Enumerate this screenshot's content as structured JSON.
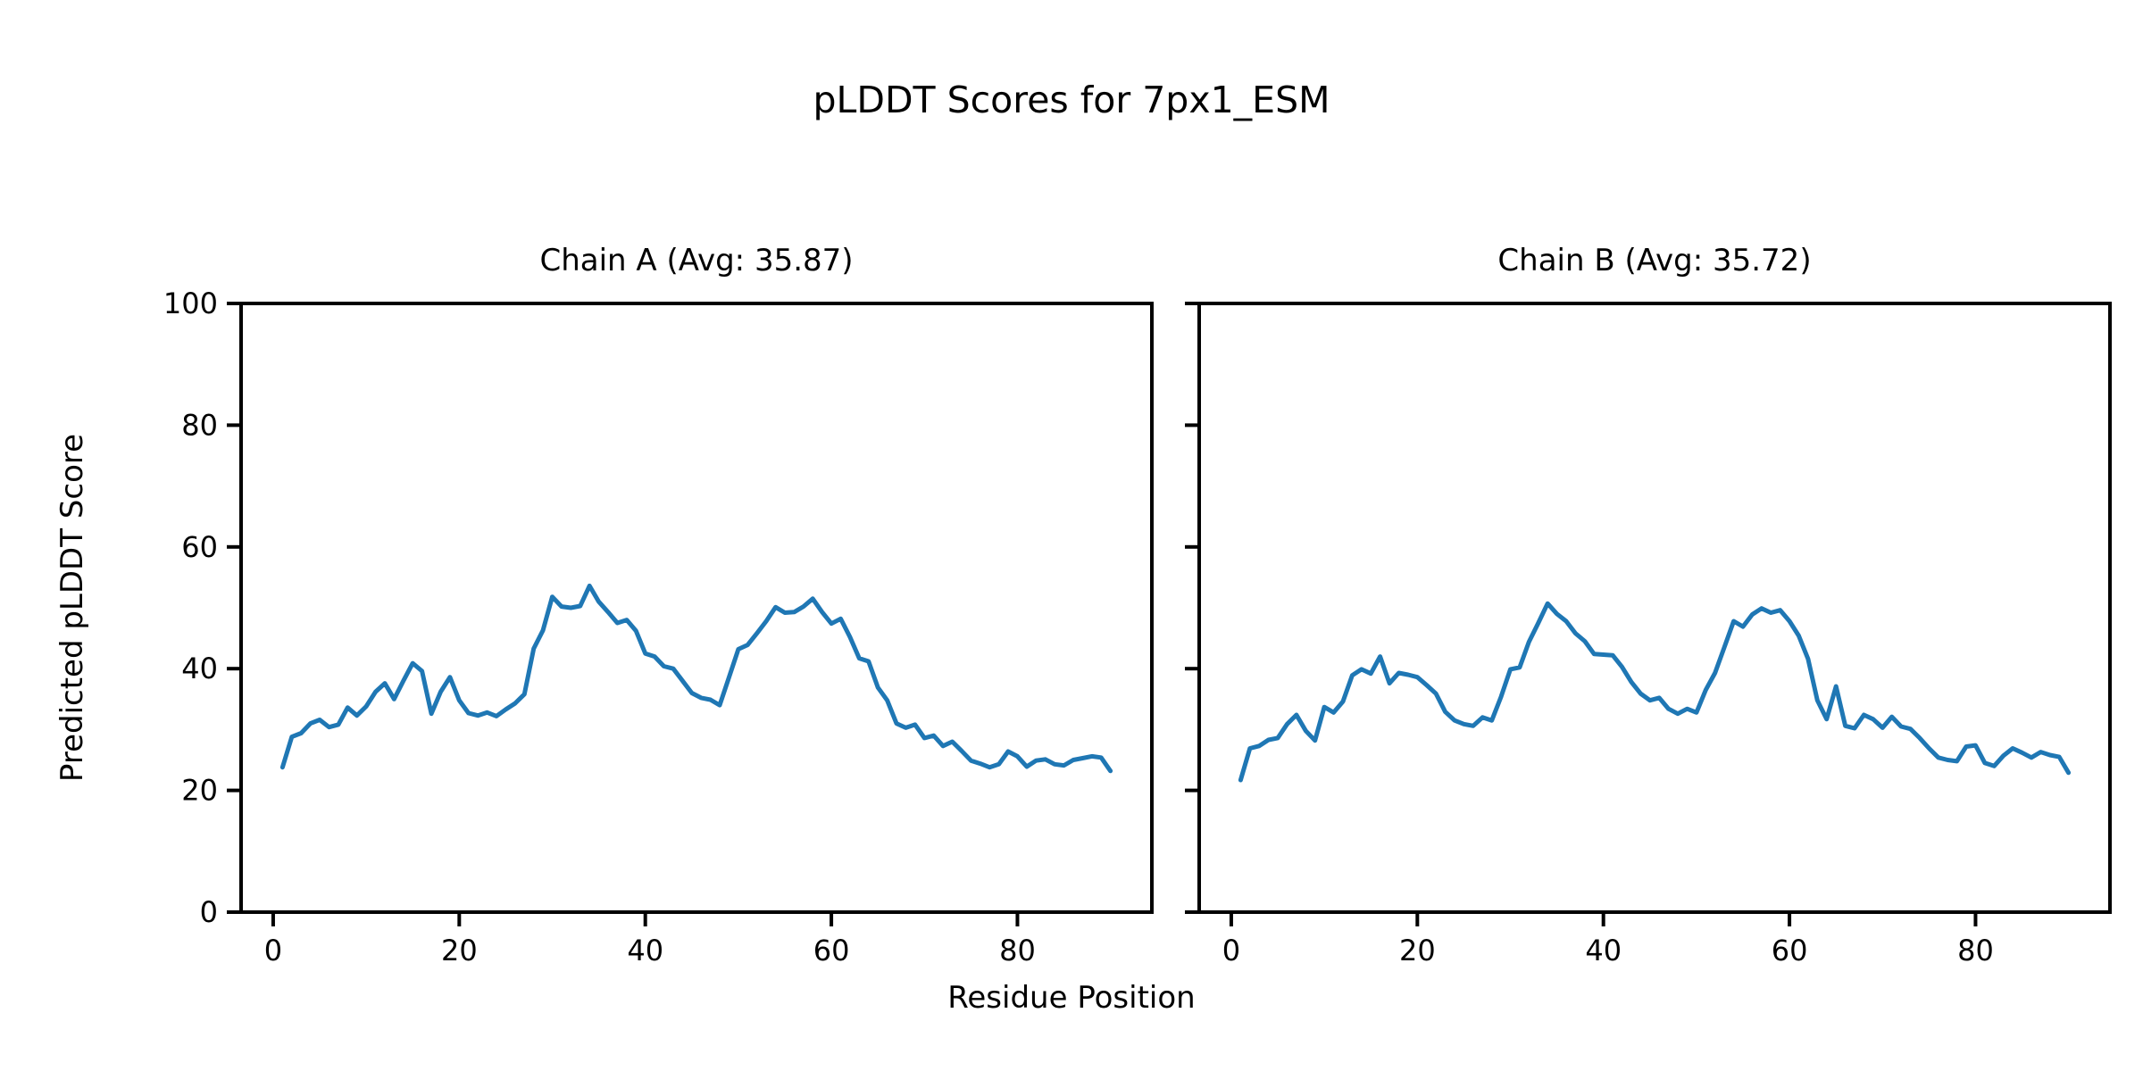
{
  "figure": {
    "title": "pLDDT Scores for 7px1_ESM",
    "xlabel": "Residue Position",
    "ylabel": "Predicted pLDDT Score",
    "background_color": "#ffffff",
    "text_color": "#000000",
    "line_color": "#1f77b4"
  },
  "chart_data": [
    {
      "type": "line",
      "title": "Chain A (Avg: 35.87)",
      "chain": "A",
      "avg": 35.87,
      "xlabel": "Residue Position",
      "ylabel": "Predicted pLDDT Score",
      "xlim": [
        -3.45,
        94.45
      ],
      "ylim": [
        0,
        100
      ],
      "x_ticks": [
        0,
        20,
        40,
        60,
        80
      ],
      "y_ticks": [
        0,
        20,
        40,
        60,
        80,
        100
      ],
      "y_tick_labels_visible": true,
      "grid": false,
      "legend_position": "none",
      "line_color": "#1f77b4",
      "series": [
        {
          "name": "Chain A",
          "x": [
            1,
            2,
            3,
            4,
            5,
            6,
            7,
            8,
            9,
            10,
            11,
            12,
            13,
            14,
            15,
            16,
            17,
            18,
            19,
            20,
            21,
            22,
            23,
            24,
            25,
            26,
            27,
            28,
            29,
            30,
            31,
            32,
            33,
            34,
            35,
            36,
            37,
            38,
            39,
            40,
            41,
            42,
            43,
            44,
            45,
            46,
            47,
            48,
            49,
            50,
            51,
            52,
            53,
            54,
            55,
            56,
            57,
            58,
            59,
            60,
            61,
            62,
            63,
            64,
            65,
            66,
            67,
            68,
            69,
            70,
            71,
            72,
            73,
            74,
            75,
            76,
            77,
            78,
            79,
            80,
            81,
            82,
            83,
            84,
            85,
            86,
            87,
            88,
            89,
            90
          ],
          "values": [
            23.8,
            28.8,
            29.4,
            31.0,
            31.6,
            30.4,
            30.8,
            33.6,
            32.3,
            33.8,
            36.2,
            37.6,
            35.0,
            38.0,
            40.9,
            39.6,
            32.6,
            36.2,
            38.6,
            34.8,
            32.7,
            32.3,
            32.8,
            32.2,
            33.3,
            34.3,
            35.8,
            43.3,
            46.3,
            51.8,
            50.2,
            50.0,
            50.3,
            53.6,
            51.0,
            49.3,
            47.5,
            48.0,
            46.2,
            42.5,
            42.0,
            40.4,
            40.0,
            38.0,
            36.0,
            35.2,
            34.9,
            34.0,
            38.6,
            43.2,
            43.9,
            45.8,
            47.8,
            50.1,
            49.2,
            49.3,
            50.2,
            51.5,
            49.3,
            47.4,
            48.2,
            45.2,
            41.7,
            41.2,
            36.9,
            34.8,
            31.0,
            30.3,
            30.8,
            28.6,
            29.0,
            27.3,
            28.0,
            26.5,
            24.9,
            24.4,
            23.8,
            24.3,
            26.4,
            25.6,
            23.9,
            24.9,
            25.1,
            24.3,
            24.1,
            25.0,
            25.3,
            25.6,
            25.4,
            23.2
          ]
        }
      ]
    },
    {
      "type": "line",
      "title": "Chain B (Avg: 35.72)",
      "chain": "B",
      "avg": 35.72,
      "xlabel": "Residue Position",
      "ylabel": "Predicted pLDDT Score",
      "xlim": [
        -3.45,
        94.45
      ],
      "ylim": [
        0,
        100
      ],
      "x_ticks": [
        0,
        20,
        40,
        60,
        80
      ],
      "y_ticks": [
        0,
        20,
        40,
        60,
        80,
        100
      ],
      "y_tick_labels_visible": false,
      "grid": false,
      "legend_position": "none",
      "line_color": "#1f77b4",
      "series": [
        {
          "name": "Chain B",
          "x": [
            1,
            2,
            3,
            4,
            5,
            6,
            7,
            8,
            9,
            10,
            11,
            12,
            13,
            14,
            15,
            16,
            17,
            18,
            19,
            20,
            21,
            22,
            23,
            24,
            25,
            26,
            27,
            28,
            29,
            30,
            31,
            32,
            33,
            34,
            35,
            36,
            37,
            38,
            39,
            40,
            41,
            42,
            43,
            44,
            45,
            46,
            47,
            48,
            49,
            50,
            51,
            52,
            53,
            54,
            55,
            56,
            57,
            58,
            59,
            60,
            61,
            62,
            63,
            64,
            65,
            66,
            67,
            68,
            69,
            70,
            71,
            72,
            73,
            74,
            75,
            76,
            77,
            78,
            79,
            80,
            81,
            82,
            83,
            84,
            85,
            86,
            87,
            88,
            89,
            90
          ],
          "values": [
            21.7,
            26.9,
            27.3,
            28.3,
            28.6,
            30.9,
            32.4,
            29.8,
            28.2,
            33.7,
            32.8,
            34.6,
            38.9,
            39.9,
            39.2,
            42.0,
            37.6,
            39.3,
            39.0,
            38.6,
            37.3,
            35.9,
            32.9,
            31.5,
            30.9,
            30.6,
            32.0,
            31.5,
            35.4,
            39.9,
            40.2,
            44.4,
            47.5,
            50.7,
            49.0,
            47.8,
            45.8,
            44.5,
            42.4,
            42.3,
            42.2,
            40.3,
            37.8,
            35.9,
            34.8,
            35.2,
            33.4,
            32.6,
            33.4,
            32.8,
            36.5,
            39.3,
            43.5,
            47.8,
            46.9,
            48.9,
            49.9,
            49.2,
            49.6,
            47.8,
            45.4,
            41.6,
            34.8,
            31.7,
            37.1,
            30.6,
            30.2,
            32.4,
            31.7,
            30.3,
            32.1,
            30.5,
            30.1,
            28.6,
            26.9,
            25.4,
            25.0,
            24.8,
            27.2,
            27.4,
            24.5,
            24.0,
            25.7,
            26.9,
            26.2,
            25.4,
            26.3,
            25.8,
            25.5,
            22.9
          ]
        }
      ]
    }
  ]
}
